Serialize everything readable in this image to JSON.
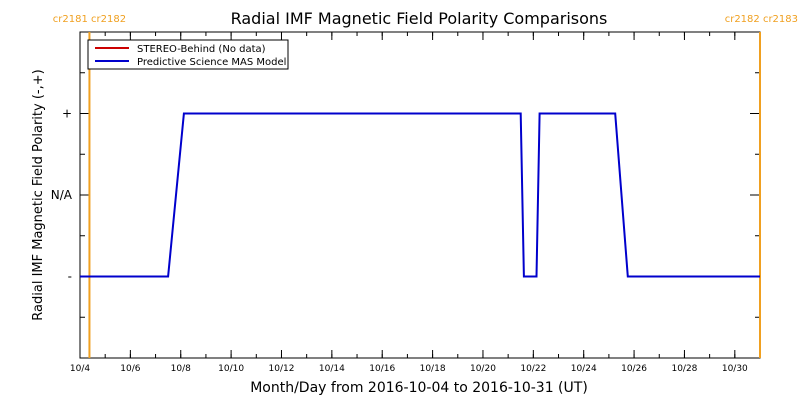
{
  "chart_data": {
    "type": "line",
    "title": "Radial IMF Magnetic Field Polarity Comparisons",
    "xlabel": "Month/Day from 2016-10-04 to 2016-10-31 (UT)",
    "ylabel": "Radial IMF Magnetic Field Polarity (-,+)",
    "x_range": [
      "2016-10-04",
      "2016-10-31"
    ],
    "x_ticks": [
      "10/4",
      "10/6",
      "10/8",
      "10/10",
      "10/12",
      "10/14",
      "10/16",
      "10/18",
      "10/20",
      "10/22",
      "10/24",
      "10/26",
      "10/28",
      "10/30"
    ],
    "y_ticks": [
      "-",
      "N/A",
      "+"
    ],
    "y_range": [
      -2,
      2
    ],
    "grid": false,
    "legend_position": "top-left",
    "carrington_markers": [
      {
        "x": "2016-10-04 09:00",
        "labels": [
          "cr2181",
          "cr2182"
        ]
      },
      {
        "x": "2016-10-31 09:00",
        "labels": [
          "cr2182",
          "cr2183"
        ]
      }
    ],
    "series": [
      {
        "name": "STEREO-Behind (No data)",
        "color": "#cc0000",
        "x": [],
        "values": []
      },
      {
        "name": "Predictive Science MAS Model",
        "color": "#0000cc",
        "x": [
          "2016-10-04 00:00",
          "2016-10-07 12:00",
          "2016-10-08 03:00",
          "2016-10-21 12:00",
          "2016-10-21 15:00",
          "2016-10-22 03:00",
          "2016-10-22 06:00",
          "2016-10-22 18:00",
          "2016-10-25 06:00",
          "2016-10-25 18:00",
          "2016-10-31 00:00"
        ],
        "values": [
          -1,
          -1,
          1,
          1,
          -1,
          -1,
          1,
          1,
          1,
          -1,
          -1
        ]
      }
    ]
  }
}
